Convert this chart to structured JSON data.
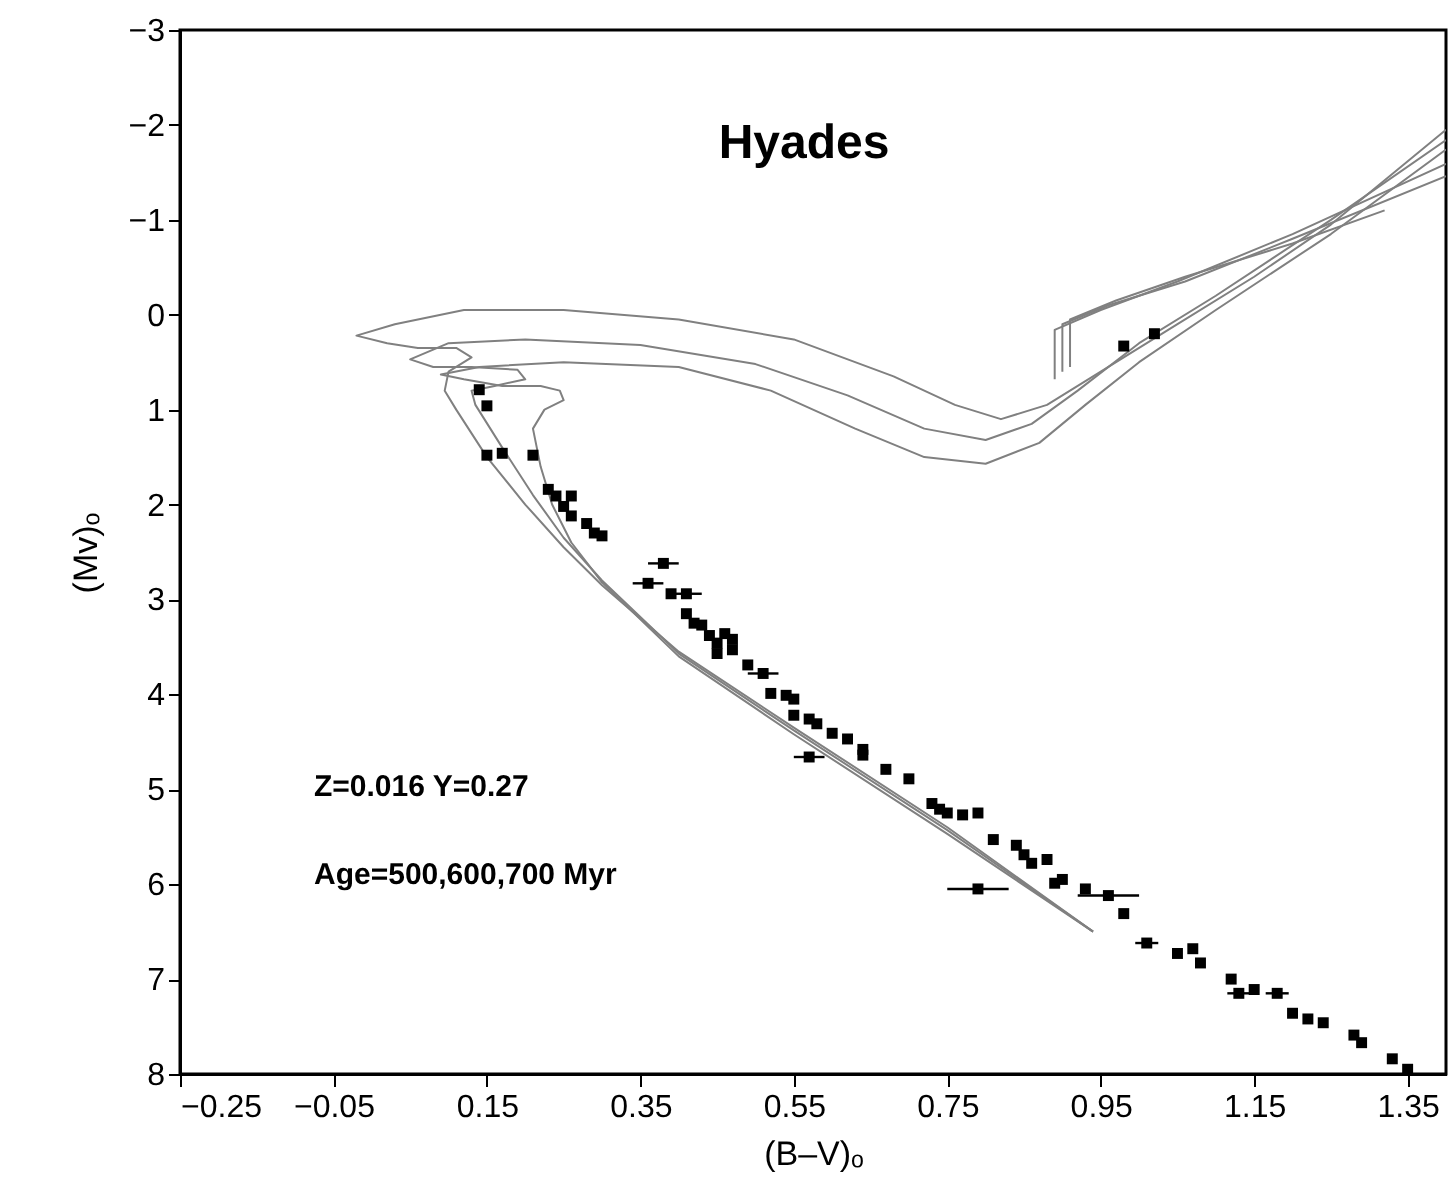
{
  "chart_data": {
    "type": "scatter",
    "title": "Hyades",
    "xlabel": "(B–V)ₒ",
    "ylabel": "(Mv)ₒ",
    "annotations": [
      "Z=0.016 Y=0.27",
      "Age=500,600,700 Myr"
    ],
    "xlim": [
      -0.25,
      1.4
    ],
    "xticks": [
      -0.25,
      -0.05,
      0.15,
      0.35,
      0.55,
      0.75,
      0.95,
      1.15,
      1.35
    ],
    "ylim": [
      8,
      -3
    ],
    "yticks": [
      -3,
      -2,
      -1,
      0,
      1,
      2,
      3,
      4,
      5,
      6,
      7,
      8
    ],
    "grid": false,
    "marker": "square",
    "line_style": "solid",
    "series": [
      {
        "type": "line",
        "marker": "none",
        "color": "#808080",
        "x": [
          0.94,
          0.75,
          0.55,
          0.4,
          0.3,
          0.25,
          0.2,
          0.15,
          0.11,
          0.095,
          0.1,
          0.13,
          0.11,
          0.06,
          0.02,
          -0.02,
          0.03,
          0.12,
          0.25,
          0.4,
          0.55,
          0.68,
          0.76,
          0.82,
          0.88,
          0.95,
          1.05,
          1.15,
          1.25,
          1.4
        ],
        "values": [
          6.5,
          5.4,
          4.35,
          3.55,
          2.85,
          2.45,
          2.0,
          1.5,
          1.0,
          0.8,
          0.6,
          0.45,
          0.35,
          0.35,
          0.3,
          0.22,
          0.1,
          -0.05,
          -0.05,
          0.05,
          0.26,
          0.65,
          0.95,
          1.1,
          0.95,
          0.6,
          0.1,
          -0.4,
          -0.95,
          -1.95
        ]
      },
      {
        "type": "line",
        "marker": "none",
        "color": "#808080",
        "x": [
          0.94,
          0.75,
          0.55,
          0.4,
          0.3,
          0.25,
          0.21,
          0.17,
          0.135,
          0.13,
          0.16,
          0.2,
          0.19,
          0.13,
          0.08,
          0.05,
          0.1,
          0.2,
          0.35,
          0.5,
          0.62,
          0.72,
          0.8,
          0.86,
          0.92,
          1.0,
          1.1,
          1.25,
          1.4
        ],
        "values": [
          6.5,
          5.43,
          4.38,
          3.57,
          2.8,
          2.35,
          1.9,
          1.4,
          0.95,
          0.8,
          0.75,
          0.68,
          0.58,
          0.55,
          0.55,
          0.47,
          0.3,
          0.26,
          0.32,
          0.52,
          0.85,
          1.2,
          1.32,
          1.15,
          0.8,
          0.3,
          -0.2,
          -1.0,
          -1.84
        ]
      },
      {
        "type": "line",
        "marker": "none",
        "color": "#808080",
        "x": [
          0.94,
          0.75,
          0.55,
          0.4,
          0.3,
          0.26,
          0.235,
          0.22,
          0.21,
          0.225,
          0.25,
          0.245,
          0.22,
          0.17,
          0.12,
          0.09,
          0.14,
          0.25,
          0.4,
          0.52,
          0.63,
          0.72,
          0.8,
          0.87,
          0.93,
          1.0,
          1.1,
          1.25,
          1.4
        ],
        "values": [
          6.5,
          5.47,
          4.42,
          3.6,
          2.82,
          2.4,
          2.0,
          1.6,
          1.2,
          1.0,
          0.9,
          0.8,
          0.75,
          0.75,
          0.68,
          0.63,
          0.55,
          0.5,
          0.55,
          0.8,
          1.2,
          1.5,
          1.57,
          1.35,
          0.95,
          0.5,
          -0.05,
          -0.85,
          -1.74
        ]
      },
      {
        "type": "line",
        "marker": "none",
        "color": "#808080",
        "x": [
          0.89,
          0.89,
          0.95,
          1.05,
          1.2,
          1.4
        ],
        "values": [
          0.68,
          0.16,
          -0.05,
          -0.35,
          -0.85,
          -1.59
        ]
      },
      {
        "type": "line",
        "marker": "none",
        "color": "#808080",
        "x": [
          0.9,
          0.9,
          0.96,
          1.06,
          1.2,
          1.4
        ],
        "values": [
          0.6,
          0.1,
          -0.1,
          -0.35,
          -0.8,
          -1.46
        ]
      },
      {
        "type": "line",
        "marker": "none",
        "color": "#808080",
        "x": [
          0.91,
          0.91,
          0.97,
          1.06,
          1.2,
          1.32
        ],
        "values": [
          0.55,
          0.05,
          -0.15,
          -0.4,
          -0.75,
          -1.1
        ]
      },
      {
        "color": "#000000",
        "x": [
          0.14,
          0.15,
          0.15,
          0.17,
          0.21,
          0.23,
          0.24,
          0.25,
          0.26,
          0.26,
          0.28,
          0.29,
          0.3,
          0.38,
          0.36,
          0.41,
          0.39,
          0.41,
          0.42,
          0.43,
          0.44,
          0.45,
          0.46,
          0.47,
          0.45,
          0.47,
          0.49,
          0.51,
          0.52,
          0.54,
          0.55,
          0.55,
          0.57,
          0.58,
          0.57,
          0.6,
          0.62,
          0.64,
          0.64,
          0.67,
          0.7,
          0.73,
          0.74,
          0.75,
          0.77,
          0.79,
          0.81,
          0.84,
          0.85,
          0.86,
          0.88,
          0.89,
          0.9,
          0.93,
          0.96,
          0.79,
          0.98,
          1.01,
          1.05,
          1.07,
          1.08,
          1.12,
          1.13,
          1.15,
          1.18,
          1.2,
          1.22,
          1.24,
          1.28,
          1.29,
          1.33,
          1.35,
          0.98,
          1.02
        ],
        "values": [
          0.79,
          0.96,
          1.48,
          1.46,
          1.48,
          1.84,
          1.91,
          2.02,
          1.91,
          2.12,
          2.2,
          2.3,
          2.33,
          2.62,
          2.83,
          2.94,
          2.94,
          3.15,
          3.25,
          3.27,
          3.38,
          3.46,
          3.36,
          3.42,
          3.57,
          3.53,
          3.69,
          3.78,
          3.99,
          4.01,
          4.05,
          4.22,
          4.26,
          4.31,
          4.66,
          4.41,
          4.47,
          4.58,
          4.64,
          4.79,
          4.89,
          5.15,
          5.21,
          5.25,
          5.27,
          5.25,
          5.53,
          5.59,
          5.69,
          5.78,
          5.74,
          5.99,
          5.95,
          6.05,
          6.12,
          6.05,
          6.31,
          6.62,
          6.73,
          6.68,
          6.83,
          7.0,
          7.15,
          7.11,
          7.15,
          7.36,
          7.42,
          7.46,
          7.59,
          7.67,
          7.84,
          7.95,
          0.33,
          0.2
        ],
        "xerrors": [
          null,
          null,
          null,
          null,
          null,
          null,
          null,
          null,
          null,
          null,
          null,
          null,
          null,
          0.02,
          0.02,
          0.02,
          null,
          null,
          null,
          null,
          null,
          null,
          null,
          null,
          null,
          null,
          null,
          0.02,
          null,
          null,
          null,
          null,
          null,
          null,
          0.02,
          null,
          null,
          null,
          null,
          null,
          null,
          null,
          null,
          null,
          null,
          null,
          null,
          null,
          null,
          null,
          null,
          null,
          null,
          null,
          0.04,
          0.04,
          null,
          0.015,
          null,
          null,
          null,
          null,
          0.015,
          null,
          0.015,
          null,
          null,
          null,
          null,
          null,
          null,
          null,
          null,
          null
        ]
      }
    ]
  }
}
